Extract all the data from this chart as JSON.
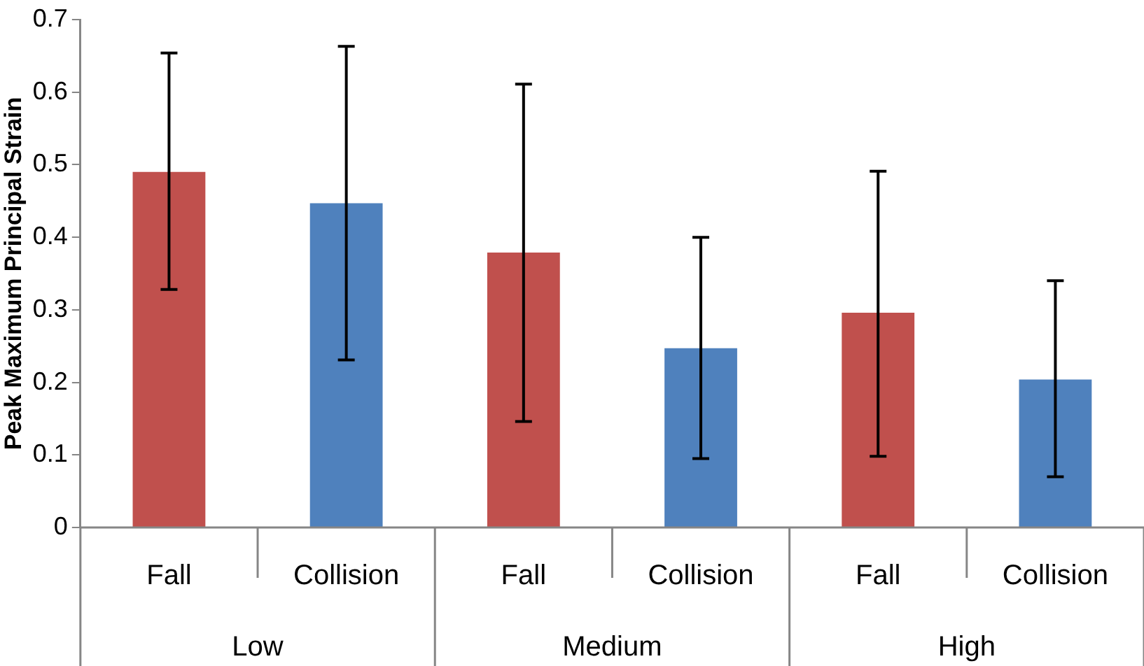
{
  "chart_data": {
    "type": "bar",
    "ylabel": "Peak Maximum Principal Strain",
    "categories": [
      "Low",
      "Medium",
      "High"
    ],
    "series": [
      {
        "name": "Fall",
        "color": "#c0504d",
        "values": [
          0.49,
          0.379,
          0.296
        ],
        "errors": [
          [
            0.328,
            0.654
          ],
          [
            0.146,
            0.611
          ],
          [
            0.098,
            0.491
          ]
        ]
      },
      {
        "name": "Collision",
        "color": "#4f81bd",
        "values": [
          0.447,
          0.247,
          0.204
        ],
        "errors": [
          [
            0.231,
            0.663
          ],
          [
            0.095,
            0.4
          ],
          [
            0.07,
            0.34
          ]
        ]
      }
    ],
    "ylim": [
      0,
      0.7
    ],
    "yticks": [
      0,
      0.1,
      0.2,
      0.3,
      0.4,
      0.5,
      0.6,
      0.7
    ],
    "grid": false,
    "legend": false
  }
}
